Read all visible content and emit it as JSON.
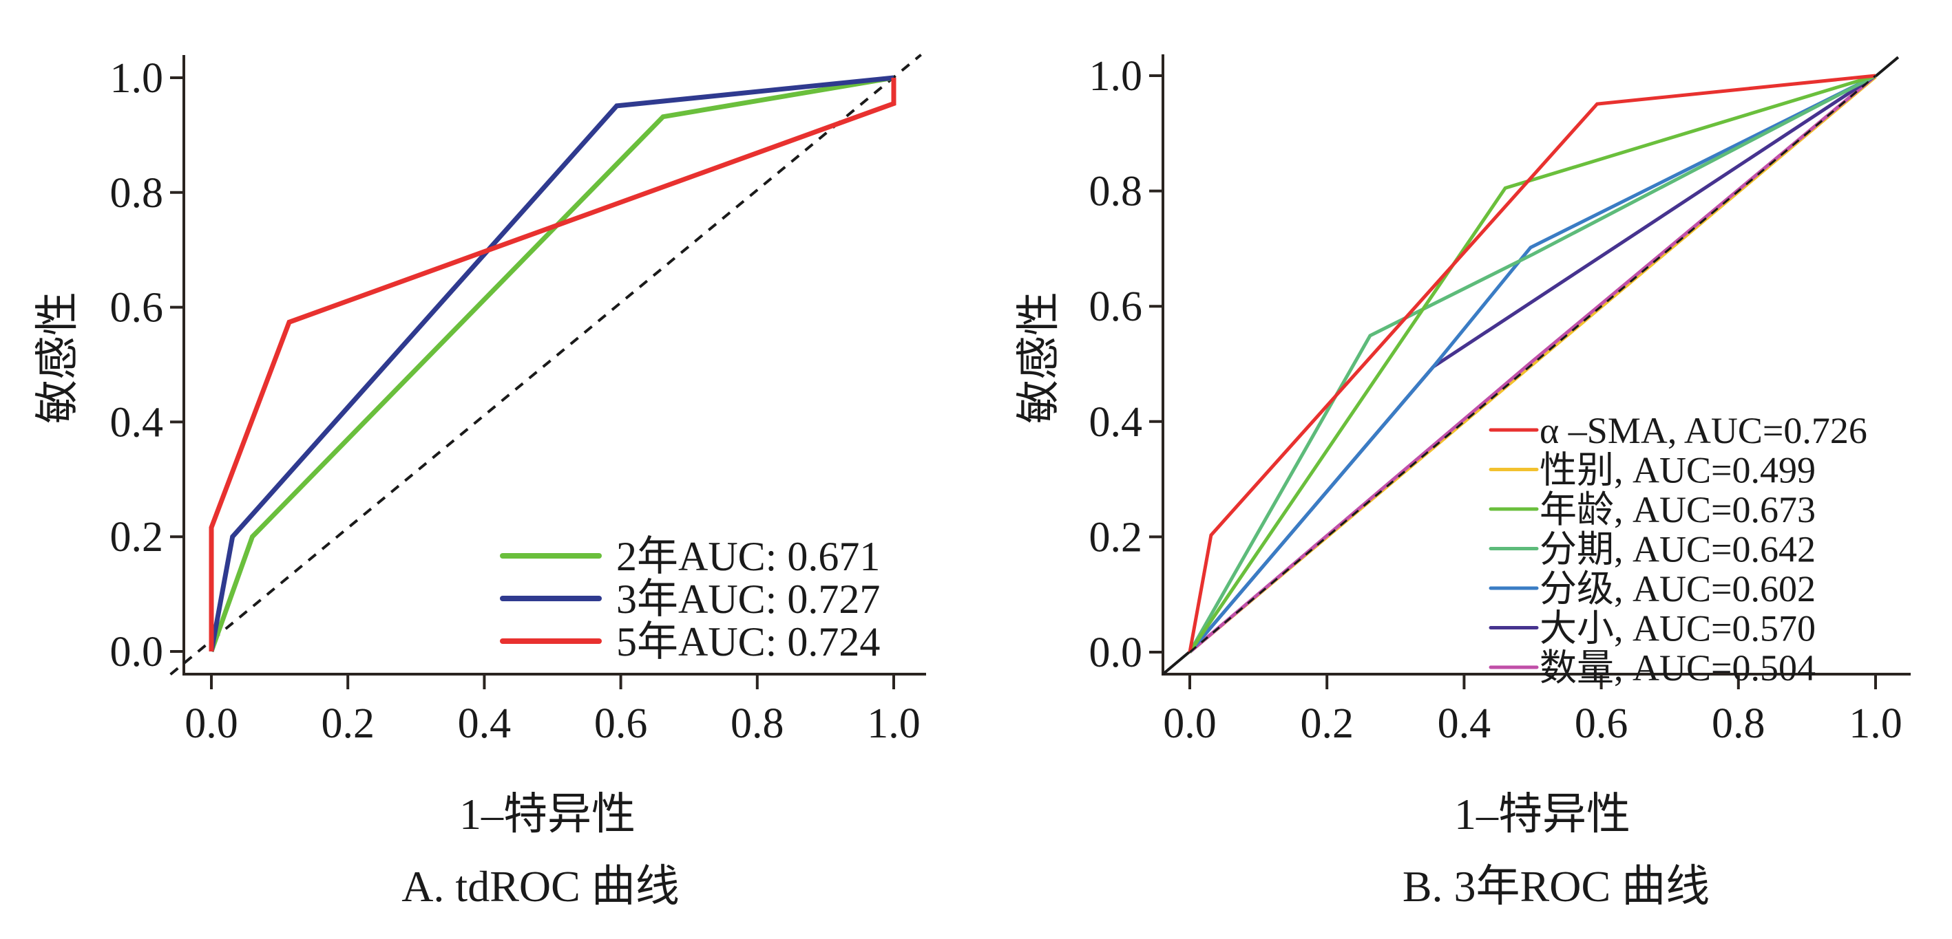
{
  "chart_data": [
    {
      "panel": "A",
      "type": "line",
      "caption": "A. tdROC 曲线",
      "xlabel": "1–特异性",
      "ylabel": "敏感性",
      "xlim": [
        0,
        1
      ],
      "ylim": [
        0,
        1
      ],
      "x_ticks": [
        "0.0",
        "0.2",
        "0.4",
        "0.6",
        "0.8",
        "1.0"
      ],
      "y_ticks": [
        "0.0",
        "0.2",
        "0.4",
        "0.6",
        "0.8",
        "1.0"
      ],
      "grid": false,
      "legend_position": "bottom-right",
      "reference_line": {
        "style": "dashed",
        "color": "#1a1a1a",
        "points": [
          [
            0,
            0
          ],
          [
            1,
            1
          ]
        ]
      },
      "series": [
        {
          "name": "2年AUC: 0.671",
          "color": "#6abf3c",
          "points": [
            [
              0,
              0
            ],
            [
              0.06,
              0.2
            ],
            [
              0.662,
              0.932
            ],
            [
              1.0,
              1.0
            ]
          ]
        },
        {
          "name": "3年AUC: 0.727",
          "color": "#2f3a8f",
          "points": [
            [
              0,
              0
            ],
            [
              0.031,
              0.2
            ],
            [
              0.594,
              0.951
            ],
            [
              1.0,
              1.0
            ]
          ]
        },
        {
          "name": "5年AUC: 0.724",
          "color": "#e8312f",
          "points": [
            [
              0,
              0
            ],
            [
              0,
              0.216
            ],
            [
              0.114,
              0.574
            ],
            [
              1.0,
              0.955
            ],
            [
              1.0,
              1.0
            ]
          ]
        }
      ]
    },
    {
      "panel": "B",
      "type": "line",
      "caption": "B. 3年ROC 曲线",
      "xlabel": "1–特异性",
      "ylabel": "敏感性",
      "xlim": [
        0,
        1
      ],
      "ylim": [
        0,
        1
      ],
      "x_ticks": [
        "0.0",
        "0.2",
        "0.4",
        "0.6",
        "0.8",
        "1.0"
      ],
      "y_ticks": [
        "0.0",
        "0.2",
        "0.4",
        "0.6",
        "0.8",
        "1.0"
      ],
      "grid": false,
      "legend_position": "bottom-right",
      "reference_line": {
        "style": "solid",
        "color": "#1a1a1a",
        "points": [
          [
            0,
            0
          ],
          [
            1,
            1
          ]
        ]
      },
      "series": [
        {
          "name": "α –SMA, AUC=0.726",
          "color": "#e8312f",
          "points": [
            [
              0,
              0
            ],
            [
              0.031,
              0.203
            ],
            [
              0.594,
              0.951
            ],
            [
              1.0,
              1.0
            ]
          ]
        },
        {
          "name": "性别, AUC=0.499",
          "color": "#f2c12e",
          "points": [
            [
              0,
              0
            ],
            [
              1.0,
              0.998
            ]
          ]
        },
        {
          "name": "年龄, AUC=0.673",
          "color": "#6abf3c",
          "points": [
            [
              0,
              0
            ],
            [
              0.46,
              0.805
            ],
            [
              1.0,
              1.0
            ]
          ]
        },
        {
          "name": "分期, AUC=0.642",
          "color": "#5dbb7a",
          "points": [
            [
              0,
              0
            ],
            [
              0.263,
              0.549
            ],
            [
              0.5,
              0.69
            ],
            [
              1.0,
              1.0
            ]
          ]
        },
        {
          "name": "分级, AUC=0.602",
          "color": "#3a7cc4",
          "points": [
            [
              0,
              0
            ],
            [
              0.355,
              0.495
            ],
            [
              0.497,
              0.702
            ],
            [
              1.0,
              1.0
            ]
          ]
        },
        {
          "name": "大小, AUC=0.570",
          "color": "#46338f",
          "points": [
            [
              0,
              0
            ],
            [
              0.355,
              0.495
            ],
            [
              1.0,
              1.0
            ]
          ]
        },
        {
          "name": "数量, AUC=0.504",
          "color": "#c04fa8",
          "points": [
            [
              0,
              0
            ],
            [
              0.5,
              0.505
            ],
            [
              1.0,
              1.0
            ]
          ]
        }
      ]
    }
  ]
}
